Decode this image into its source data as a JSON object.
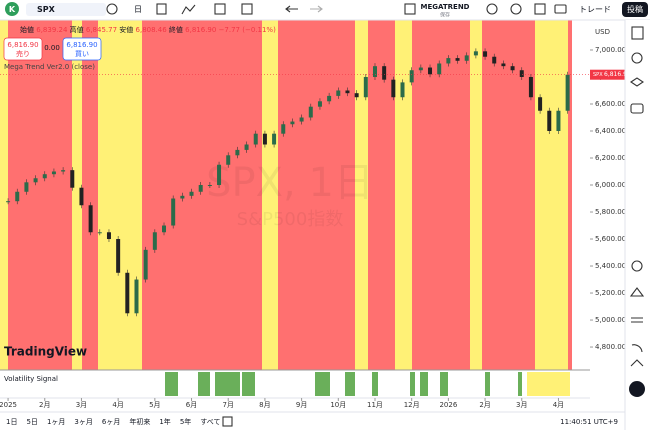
{
  "toolbar": {
    "avatar": "K",
    "symbol": "SPX",
    "interval": "日",
    "layout_name": "MEGATREND",
    "save": "保存",
    "trade": "トレード",
    "publish": "投稿"
  },
  "legend": {
    "open_label": "始値",
    "open": "6,839.24",
    "high_label": "高値",
    "high": "6,845.77",
    "low_label": "安値",
    "low": "6,808.46",
    "close_label": "終値",
    "close": "6,816.90",
    "change": "−7.77 (−0.11%)",
    "sell_price": "6,816.90",
    "sell": "売り",
    "spread": "0.00",
    "buy_price": "6,816.90",
    "buy": "買い",
    "indicator": "Mega Trend Ver2.0 (close)"
  },
  "chart_data": {
    "type": "candlestick",
    "currency": "USD",
    "watermark_symbol": "SPX, 1日",
    "watermark_name": "S&P500指数",
    "x": [
      0,
      0.25,
      0.5,
      0.75,
      1,
      1.25,
      1.5,
      1.75,
      2,
      2.25,
      2.5,
      2.75,
      3,
      3.25,
      3.5,
      3.75,
      4,
      4.25,
      4.5,
      4.75,
      5,
      5.25,
      5.5,
      5.75,
      6,
      6.25,
      6.5,
      6.75,
      7,
      7.25,
      7.5,
      7.75,
      8,
      8.25,
      8.5,
      8.75,
      9,
      9.25,
      9.5,
      9.75,
      10,
      10.25,
      10.5,
      10.75,
      11,
      11.25,
      11.5,
      11.75,
      12,
      12.25,
      12.5,
      12.75,
      13,
      13.25,
      13.5,
      13.75,
      14,
      14.25,
      14.5,
      14.75,
      15,
      15.25
    ],
    "values": [
      5880,
      5950,
      6020,
      6050,
      6080,
      6100,
      6110,
      5980,
      5850,
      5650,
      5650,
      5600,
      5350,
      5050,
      5300,
      5520,
      5650,
      5700,
      5900,
      5920,
      5950,
      6000,
      6000,
      6150,
      6220,
      6260,
      6300,
      6380,
      6300,
      6380,
      6450,
      6470,
      6500,
      6580,
      6620,
      6660,
      6700,
      6680,
      6650,
      6800,
      6880,
      6780,
      6650,
      6760,
      6850,
      6870,
      6820,
      6900,
      6940,
      6920,
      6960,
      6990,
      6950,
      6900,
      6880,
      6850,
      6800,
      6650,
      6550,
      6400,
      6550,
      6816.9
    ],
    "xlim": [
      -0.22,
      15.86
    ],
    "ylim": [
      4630,
      7222
    ],
    "xticks": [
      {
        "value": 0,
        "label": "2025"
      },
      {
        "value": 1,
        "label": "2月"
      },
      {
        "value": 2,
        "label": "3月"
      },
      {
        "value": 3,
        "label": "4月"
      },
      {
        "value": 4,
        "label": "5月"
      },
      {
        "value": 5,
        "label": "6月"
      },
      {
        "value": 6,
        "label": "7月"
      },
      {
        "value": 7,
        "label": "8月"
      },
      {
        "value": 8,
        "label": "9月"
      },
      {
        "value": 9,
        "label": "10月"
      },
      {
        "value": 10,
        "label": "11月"
      },
      {
        "value": 11,
        "label": "12月"
      },
      {
        "value": 12,
        "label": "2026"
      },
      {
        "value": 13,
        "label": "2月"
      },
      {
        "value": 14,
        "label": "3月"
      },
      {
        "value": 15,
        "label": "4月"
      }
    ],
    "yticks": [
      {
        "value": 4800,
        "label": "4,800.00"
      },
      {
        "value": 5000,
        "label": "5,000.00"
      },
      {
        "value": 5200,
        "label": "5,200.00"
      },
      {
        "value": 5400,
        "label": "5,400.00"
      },
      {
        "value": 5600,
        "label": "5,600.00"
      },
      {
        "value": 5800,
        "label": "5,800.00"
      },
      {
        "value": 6000,
        "label": "6,000.00"
      },
      {
        "value": 6200,
        "label": "6,200.00"
      },
      {
        "value": 6400,
        "label": "6,400.00"
      },
      {
        "value": 6600,
        "label": "6,600.00"
      },
      {
        "value": 6800,
        "label": "6,800.00"
      },
      {
        "value": 7000,
        "label": "7,000.00"
      }
    ],
    "last_price_tag": {
      "symbol": "SPX",
      "price": "6,816.90"
    },
    "indicator_pane": "Volatility Signal"
  },
  "branding": "TradingView",
  "bottom_bar": {
    "ranges": [
      "1日",
      "5日",
      "1ヶ月",
      "3ヶ月",
      "6ヶ月",
      "年初来",
      "1年",
      "5年",
      "すべて"
    ],
    "clock": "11:40:51 UTC+9"
  }
}
